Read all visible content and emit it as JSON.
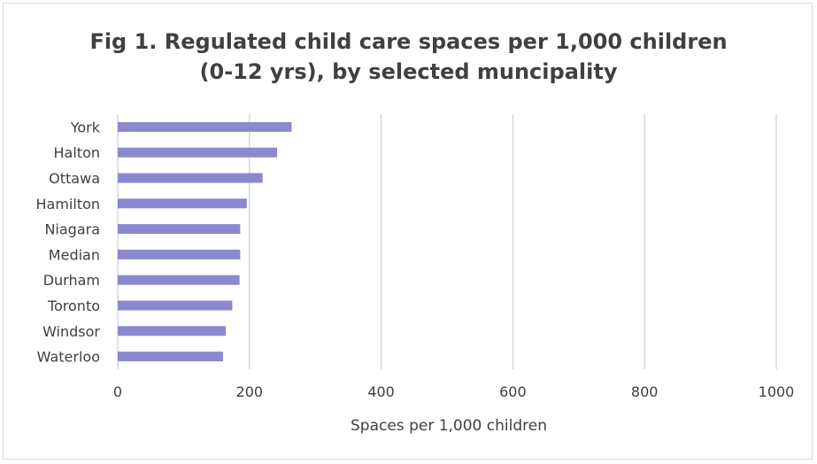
{
  "chart_data": {
    "type": "bar",
    "orientation": "horizontal",
    "title": "Fig 1. Regulated child care spaces per 1,000 children",
    "subtitle": "(0-12 yrs), by selected muncipality",
    "xlabel": "Spaces per 1,000 children",
    "ylabel": "",
    "categories": [
      "York",
      "Halton",
      "Ottawa",
      "Hamilton",
      "Niagara",
      "Median",
      "Durham",
      "Toronto",
      "Windsor",
      "Waterloo"
    ],
    "values": [
      264,
      242,
      220,
      196,
      186,
      186,
      185,
      174,
      164,
      160
    ],
    "xlim": [
      0,
      1000
    ],
    "x_ticks": [
      "0",
      "200",
      "400",
      "600",
      "800",
      "1000"
    ],
    "grid": true,
    "legend": "none",
    "bar_color": "#8c88cf",
    "grid_color": "#d9d9d9"
  }
}
